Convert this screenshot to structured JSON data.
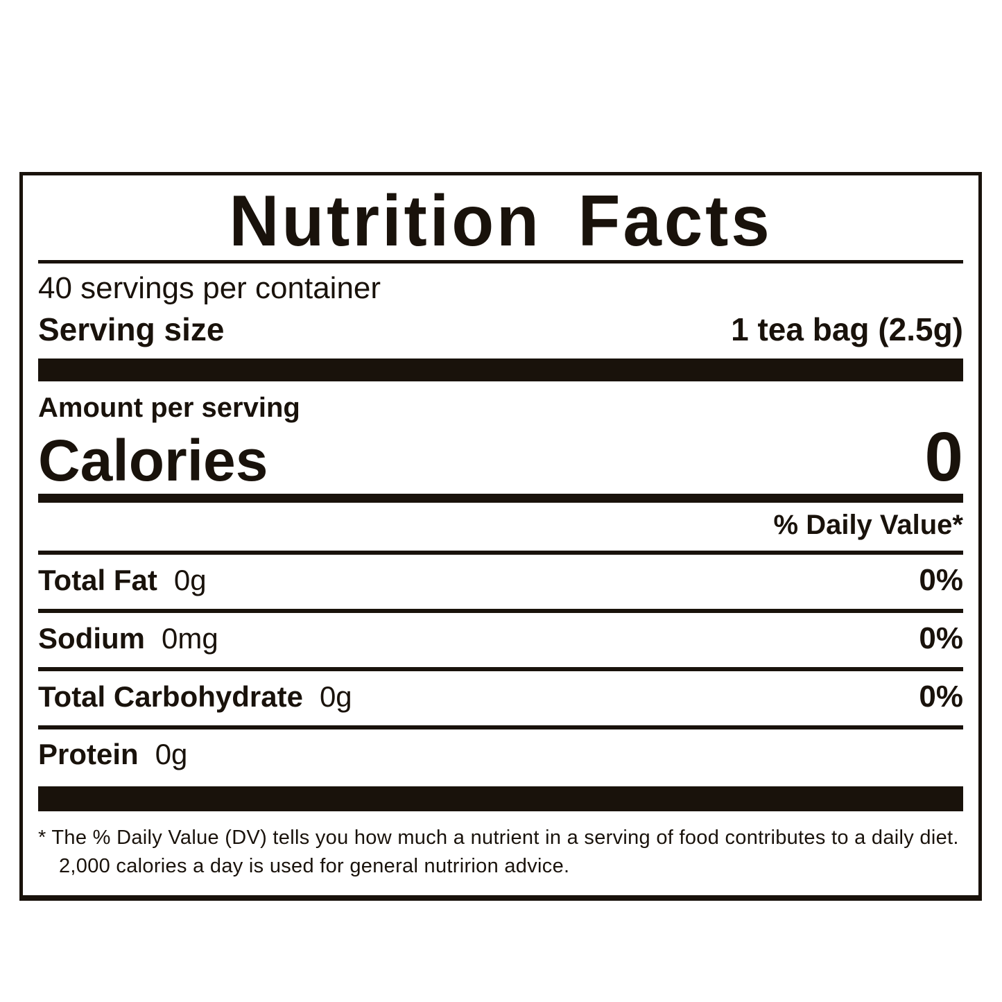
{
  "title": "Nutrition Facts",
  "servings_per_container": "40 servings per container",
  "serving_size": {
    "label": "Serving size",
    "value": "1 tea bag (2.5g)"
  },
  "amount_per_serving": "Amount per serving",
  "calories": {
    "label": "Calories",
    "value": "0"
  },
  "daily_value_header": "% Daily Value*",
  "nutrients": [
    {
      "name": "Total Fat",
      "amount": "0g",
      "dv": "0%"
    },
    {
      "name": "Sodium",
      "amount": "0mg",
      "dv": "0%"
    },
    {
      "name": "Total Carbohydrate",
      "amount": "0g",
      "dv": "0%"
    },
    {
      "name": "Protein",
      "amount": "0g",
      "dv": ""
    }
  ],
  "footnote": "* The % Daily Value (DV) tells you how much a nutrient in a serving of food contributes to a daily diet. 2,000 calories a day is used for general nutririon advice.",
  "colors": {
    "ink": "#19120b",
    "background": "#ffffff"
  }
}
